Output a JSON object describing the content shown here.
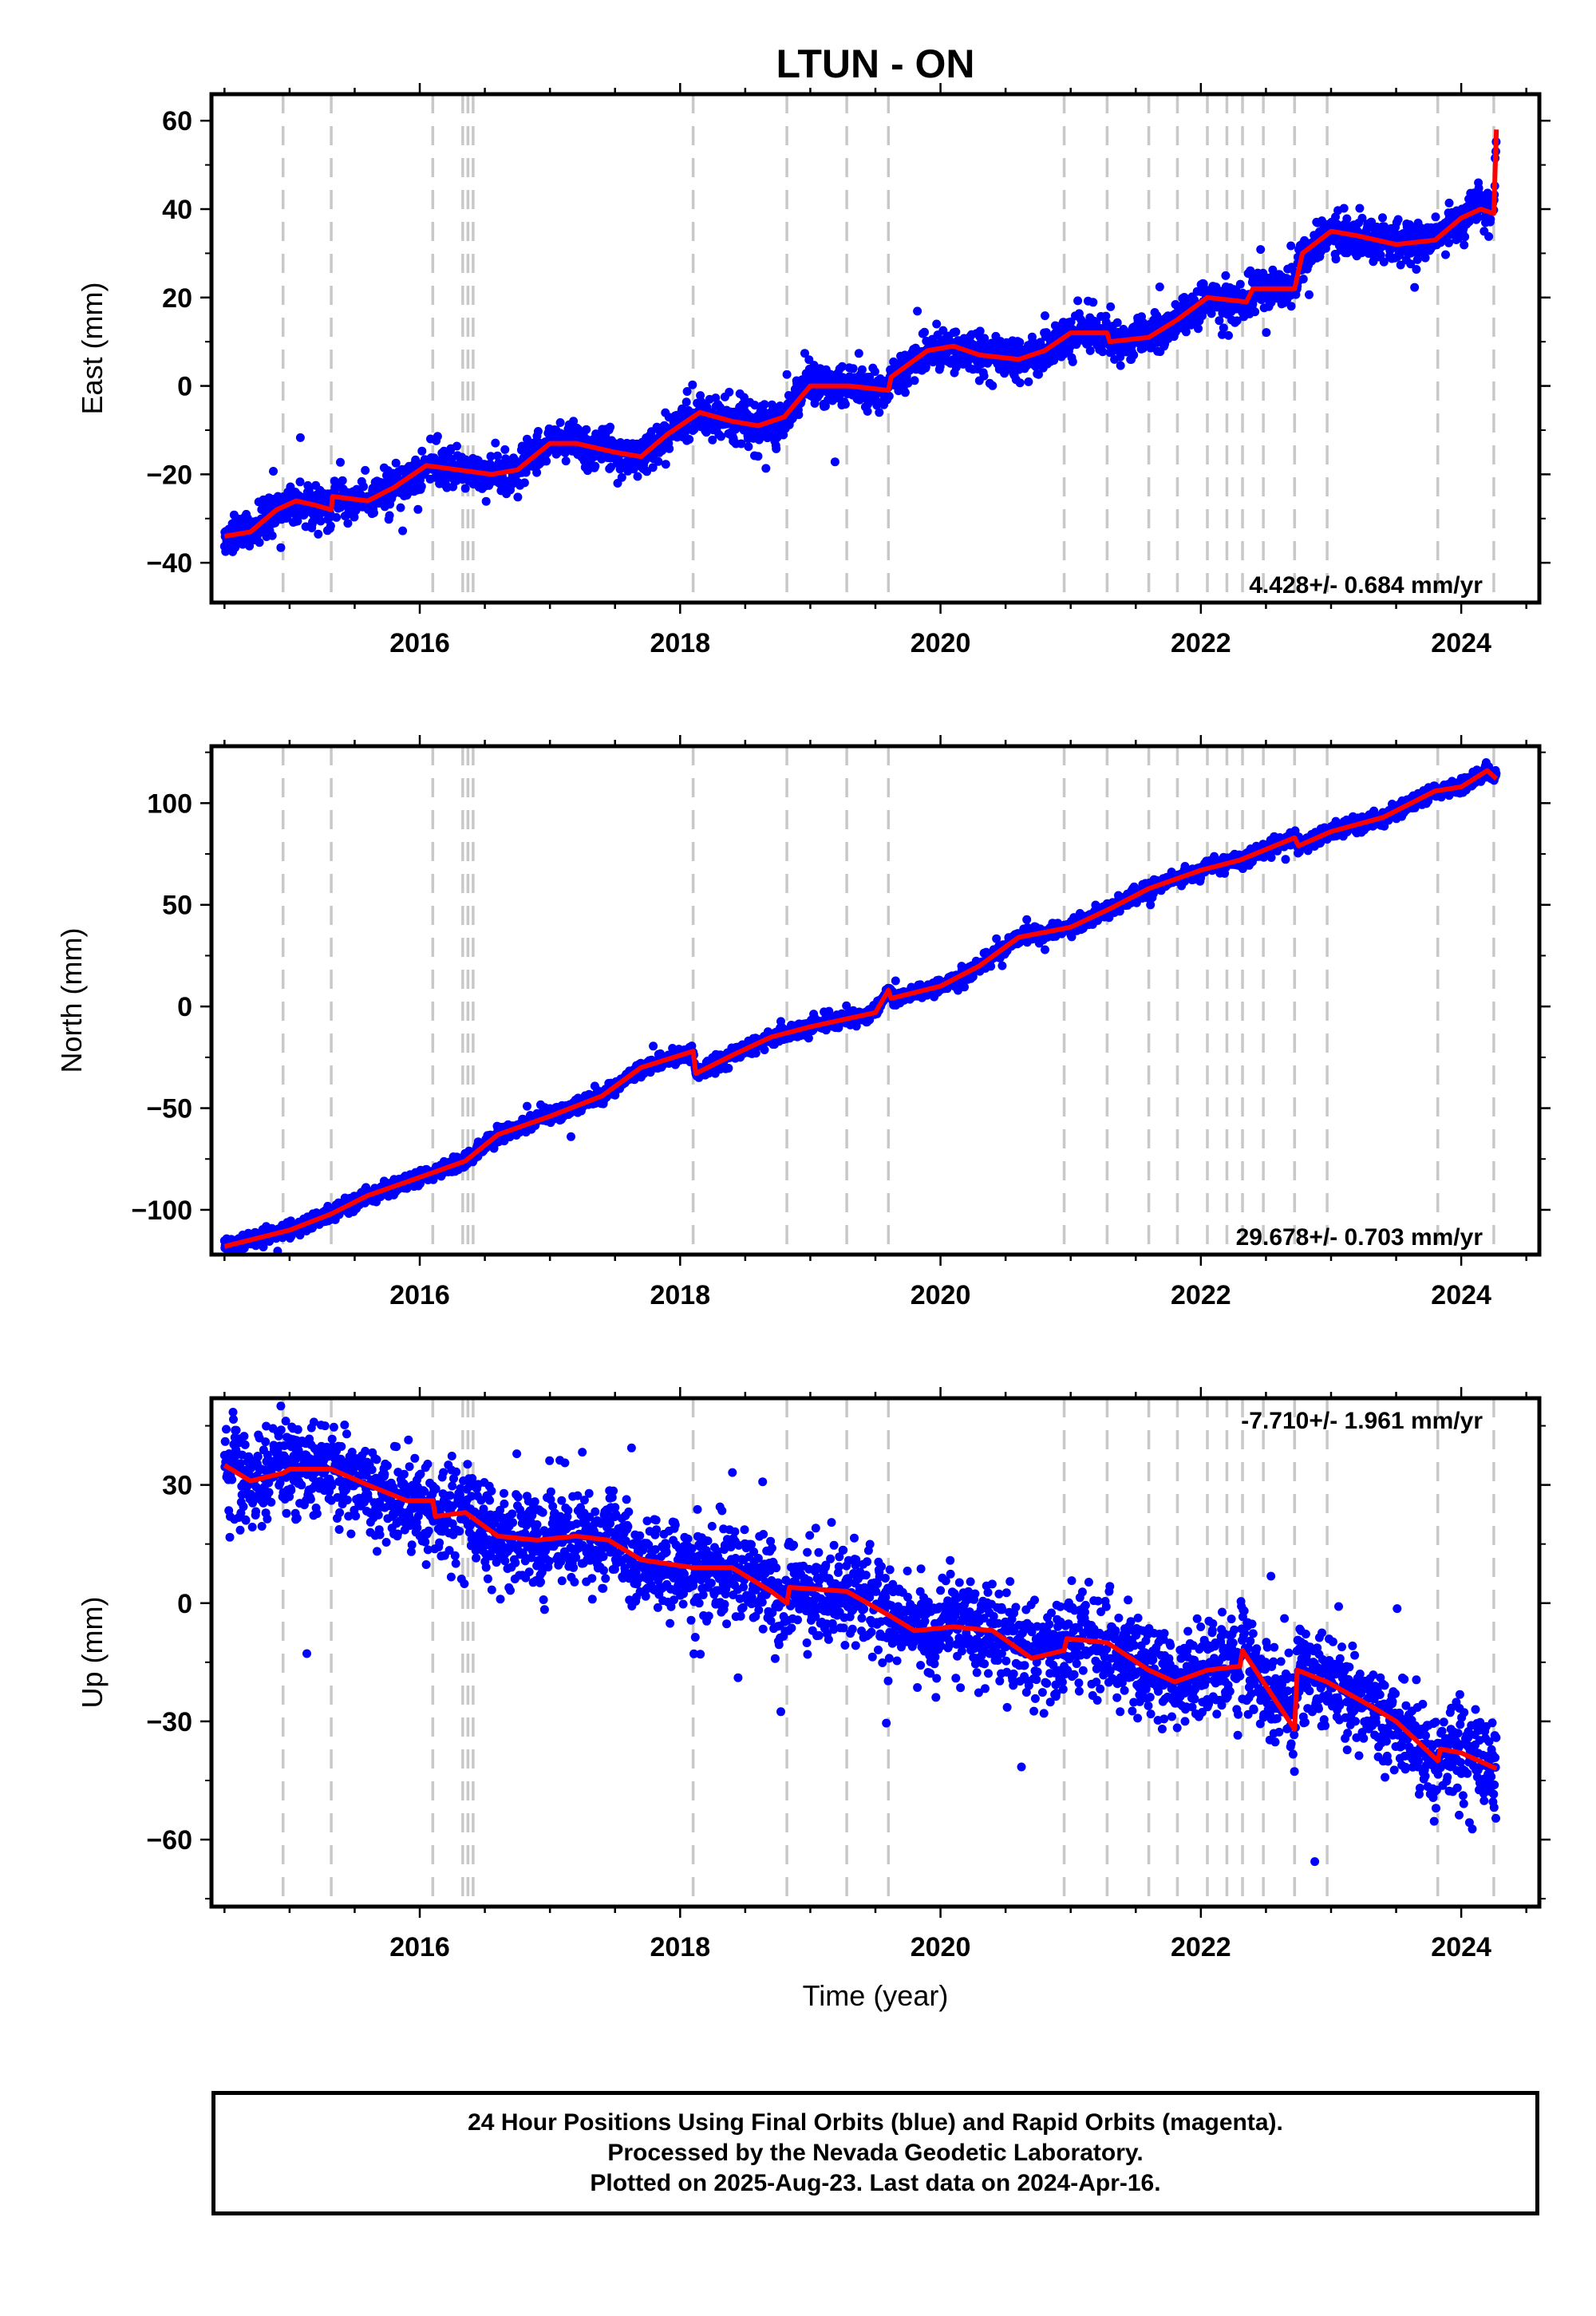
{
  "title": "LTUN - ON",
  "xlabel": "Time (year)",
  "footer": {
    "line1": "24 Hour Positions Using Final Orbits (blue) and Rapid Orbits (magenta).",
    "line2": "Processed by the Nevada Geodetic Laboratory.",
    "line3": "Plotted on 2025-Aug-23. Last data on 2024-Apr-16."
  },
  "colors": {
    "data": "#0000ff",
    "model": "#ff0000",
    "events": "#c8c8c8",
    "frame": "#000000"
  },
  "chart_data": [
    {
      "type": "scatter",
      "name": "east",
      "ylabel": "East (mm)",
      "rate_text": "4.428+/- 0.684 mm/yr",
      "xlim": [
        2014.4,
        2024.6
      ],
      "ylim": [
        -49,
        66
      ],
      "xticks": [
        2016,
        2018,
        2020,
        2022,
        2024
      ],
      "yticks": [
        -40,
        -20,
        0,
        20,
        40,
        60
      ],
      "noise_mm": 2.2,
      "event_epochs": [
        2014.95,
        2015.32,
        2016.1,
        2016.33,
        2016.37,
        2016.41,
        2018.1,
        2018.82,
        2019.28,
        2019.6,
        2020.95,
        2021.28,
        2021.6,
        2021.82,
        2022.05,
        2022.2,
        2022.32,
        2022.48,
        2022.72,
        2022.97,
        2023.82,
        2024.25
      ],
      "model_curve": [
        [
          2014.5,
          -34
        ],
        [
          2014.7,
          -33
        ],
        [
          2014.9,
          -28
        ],
        [
          2015.05,
          -26
        ],
        [
          2015.2,
          -27
        ],
        [
          2015.32,
          -28
        ],
        [
          2015.33,
          -25
        ],
        [
          2015.6,
          -26
        ],
        [
          2015.8,
          -23
        ],
        [
          2016.05,
          -18
        ],
        [
          2016.3,
          -19
        ],
        [
          2016.55,
          -20
        ],
        [
          2016.75,
          -19
        ],
        [
          2017.0,
          -13
        ],
        [
          2017.2,
          -13
        ],
        [
          2017.5,
          -15
        ],
        [
          2017.7,
          -16
        ],
        [
          2017.9,
          -11
        ],
        [
          2018.1,
          -7
        ],
        [
          2018.15,
          -6
        ],
        [
          2018.4,
          -8
        ],
        [
          2018.6,
          -9
        ],
        [
          2018.8,
          -7
        ],
        [
          2019.0,
          0
        ],
        [
          2019.3,
          0
        ],
        [
          2019.6,
          -1
        ],
        [
          2019.62,
          2
        ],
        [
          2019.9,
          8
        ],
        [
          2020.1,
          9
        ],
        [
          2020.3,
          7
        ],
        [
          2020.6,
          6
        ],
        [
          2020.8,
          8
        ],
        [
          2021.0,
          12
        ],
        [
          2021.28,
          12
        ],
        [
          2021.3,
          10
        ],
        [
          2021.6,
          11
        ],
        [
          2021.82,
          15
        ],
        [
          2022.05,
          20
        ],
        [
          2022.35,
          19
        ],
        [
          2022.4,
          22
        ],
        [
          2022.72,
          22
        ],
        [
          2022.78,
          30
        ],
        [
          2023.0,
          35
        ],
        [
          2023.2,
          34
        ],
        [
          2023.5,
          32
        ],
        [
          2023.8,
          33
        ],
        [
          2024.0,
          38
        ],
        [
          2024.15,
          40
        ],
        [
          2024.25,
          39
        ],
        [
          2024.27,
          58
        ]
      ]
    },
    {
      "type": "scatter",
      "name": "north",
      "ylabel": "North (mm)",
      "rate_text": "29.678+/- 0.703 mm/yr",
      "xlim": [
        2014.4,
        2024.6
      ],
      "ylim": [
        -122,
        128
      ],
      "xticks": [
        2016,
        2018,
        2020,
        2022,
        2024
      ],
      "yticks": [
        -100,
        -50,
        0,
        50,
        100
      ],
      "noise_mm": 1.8,
      "event_epochs": [
        2014.95,
        2015.32,
        2016.1,
        2016.33,
        2016.37,
        2016.41,
        2018.1,
        2018.82,
        2019.28,
        2019.6,
        2020.95,
        2021.28,
        2021.6,
        2021.82,
        2022.05,
        2022.2,
        2022.32,
        2022.48,
        2022.72,
        2022.97,
        2023.82,
        2024.25
      ],
      "model_curve": [
        [
          2014.5,
          -118
        ],
        [
          2015.0,
          -110
        ],
        [
          2015.32,
          -102
        ],
        [
          2015.6,
          -93
        ],
        [
          2016.0,
          -84
        ],
        [
          2016.35,
          -76
        ],
        [
          2016.6,
          -63
        ],
        [
          2017.0,
          -54
        ],
        [
          2017.4,
          -44
        ],
        [
          2017.7,
          -30
        ],
        [
          2018.1,
          -22
        ],
        [
          2018.12,
          -33
        ],
        [
          2018.4,
          -24
        ],
        [
          2018.7,
          -15
        ],
        [
          2019.0,
          -10
        ],
        [
          2019.5,
          -3
        ],
        [
          2019.6,
          8
        ],
        [
          2019.62,
          4
        ],
        [
          2020.0,
          10
        ],
        [
          2020.3,
          20
        ],
        [
          2020.6,
          34
        ],
        [
          2021.0,
          39
        ],
        [
          2021.3,
          48
        ],
        [
          2021.6,
          58
        ],
        [
          2022.0,
          67
        ],
        [
          2022.3,
          72
        ],
        [
          2022.72,
          83
        ],
        [
          2022.75,
          79
        ],
        [
          2023.0,
          86
        ],
        [
          2023.4,
          93
        ],
        [
          2023.8,
          106
        ],
        [
          2024.0,
          108
        ],
        [
          2024.2,
          116
        ],
        [
          2024.27,
          112
        ]
      ]
    },
    {
      "type": "scatter",
      "name": "up",
      "ylabel": "Up (mm)",
      "rate_text": "-7.710+/- 1.961 mm/yr",
      "xlim": [
        2014.4,
        2024.6
      ],
      "ylim": [
        -77,
        52
      ],
      "xticks": [
        2016,
        2018,
        2020,
        2022,
        2024
      ],
      "yticks": [
        -60,
        -30,
        0,
        30
      ],
      "noise_mm": 6.0,
      "event_epochs": [
        2014.95,
        2015.32,
        2016.1,
        2016.33,
        2016.37,
        2016.41,
        2018.1,
        2018.82,
        2019.28,
        2019.6,
        2020.95,
        2021.28,
        2021.6,
        2021.82,
        2022.05,
        2022.2,
        2022.32,
        2022.48,
        2022.72,
        2022.97,
        2023.82,
        2024.25
      ],
      "model_curve": [
        [
          2014.5,
          35
        ],
        [
          2014.7,
          31
        ],
        [
          2014.95,
          33
        ],
        [
          2015.0,
          34
        ],
        [
          2015.32,
          34
        ],
        [
          2015.6,
          30
        ],
        [
          2015.9,
          26
        ],
        [
          2016.1,
          26
        ],
        [
          2016.12,
          22
        ],
        [
          2016.35,
          23
        ],
        [
          2016.6,
          17
        ],
        [
          2016.9,
          16
        ],
        [
          2017.2,
          17
        ],
        [
          2017.45,
          16
        ],
        [
          2017.7,
          11
        ],
        [
          2018.1,
          9
        ],
        [
          2018.4,
          9
        ],
        [
          2018.7,
          3
        ],
        [
          2018.82,
          0
        ],
        [
          2018.84,
          4
        ],
        [
          2019.28,
          3
        ],
        [
          2019.6,
          -3
        ],
        [
          2019.8,
          -7
        ],
        [
          2020.1,
          -6
        ],
        [
          2020.4,
          -7
        ],
        [
          2020.7,
          -14
        ],
        [
          2020.95,
          -12
        ],
        [
          2020.97,
          -9
        ],
        [
          2021.28,
          -10
        ],
        [
          2021.6,
          -17
        ],
        [
          2021.8,
          -20
        ],
        [
          2022.05,
          -17
        ],
        [
          2022.3,
          -16
        ],
        [
          2022.32,
          -12
        ],
        [
          2022.48,
          -20
        ],
        [
          2022.72,
          -32
        ],
        [
          2022.74,
          -17
        ],
        [
          2022.97,
          -20
        ],
        [
          2023.3,
          -26
        ],
        [
          2023.5,
          -30
        ],
        [
          2023.82,
          -40
        ],
        [
          2023.84,
          -37
        ],
        [
          2024.0,
          -38
        ],
        [
          2024.27,
          -42
        ]
      ]
    }
  ]
}
